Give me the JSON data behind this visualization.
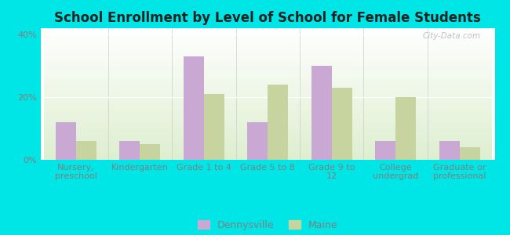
{
  "title": "School Enrollment by Level of School for Female Students",
  "categories": [
    "Nursery,\npreschool",
    "Kindergarten",
    "Grade 1 to 4",
    "Grade 5 to 8",
    "Grade 9 to\n12",
    "College\nundergrad",
    "Graduate or\nprofessional"
  ],
  "dennysville": [
    12,
    6,
    33,
    12,
    30,
    6,
    6
  ],
  "maine": [
    6,
    5,
    21,
    24,
    23,
    20,
    4
  ],
  "bar_color_dennysville": "#c9a8d4",
  "bar_color_maine": "#c8d4a0",
  "background_color": "#00e5e5",
  "grad_top": "#ffffff",
  "grad_bottom": "#deefd0",
  "yticks": [
    0,
    20,
    40
  ],
  "ylim": [
    0,
    42
  ],
  "ylabel_labels": [
    "0%",
    "20%",
    "40%"
  ],
  "legend_dennysville": "Dennysville",
  "legend_maine": "Maine",
  "title_fontsize": 12,
  "tick_fontsize": 8,
  "legend_fontsize": 9,
  "watermark": "City-Data.com"
}
